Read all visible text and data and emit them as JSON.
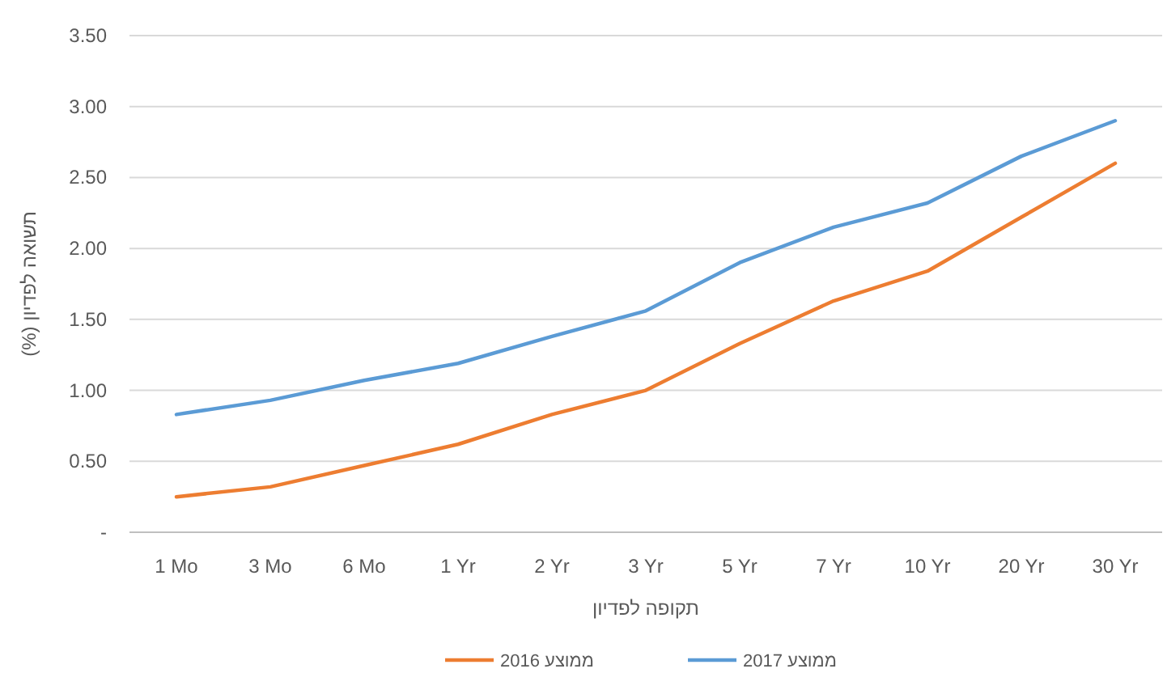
{
  "chart_data": {
    "type": "line",
    "xlabel": "תקופה לפדיון",
    "ylabel": "תשואה לפדיון (%)",
    "categories": [
      "1 Mo",
      "3 Mo",
      "6 Mo",
      "1 Yr",
      "2 Yr",
      "3 Yr",
      "5 Yr",
      "7 Yr",
      "10 Yr",
      "20 Yr",
      "30 Yr"
    ],
    "series": [
      {
        "name": "ממוצע 2016",
        "color": "#ed7d31",
        "values": [
          0.25,
          0.32,
          0.47,
          0.62,
          0.83,
          1.0,
          1.33,
          1.63,
          1.84,
          2.22,
          2.6
        ]
      },
      {
        "name": "ממוצע 2017",
        "color": "#5b9bd5",
        "values": [
          0.83,
          0.93,
          1.07,
          1.19,
          1.38,
          1.56,
          1.9,
          2.15,
          2.32,
          2.65,
          2.9
        ]
      }
    ],
    "ylim": [
      0,
      3.5
    ],
    "yticks": [
      {
        "value": 0,
        "label": "-"
      },
      {
        "value": 0.5,
        "label": "0.50"
      },
      {
        "value": 1,
        "label": "1.00"
      },
      {
        "value": 1.5,
        "label": "1.50"
      },
      {
        "value": 2,
        "label": "2.00"
      },
      {
        "value": 2.5,
        "label": "2.50"
      },
      {
        "value": 3,
        "label": "3.00"
      },
      {
        "value": 3.5,
        "label": "3.50"
      }
    ],
    "grid": "y",
    "legend": "bottom",
    "marker": "none",
    "line_style": "solid"
  }
}
